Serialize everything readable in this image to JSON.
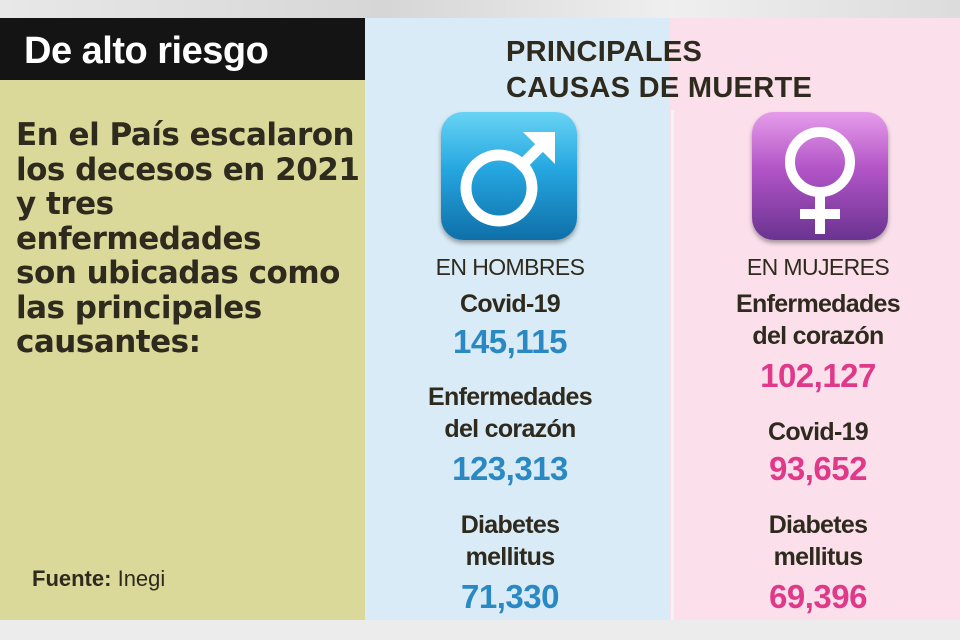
{
  "title": "De alto riesgo",
  "intro_lines": [
    "En el País escalaron",
    "los decesos en 2021",
    "y tres enfermedades",
    "son ubicadas como",
    "las principales",
    "causantes:"
  ],
  "source": {
    "label": "Fuente:",
    "value": "Inegi"
  },
  "heading_lines": [
    "PRINCIPALES",
    "CAUSAS DE MUERTE"
  ],
  "colors": {
    "men": "#2a88c3",
    "women": "#e0398a",
    "left_bg": "#dad99a",
    "men_bg": "#d9ebf6",
    "women_bg": "#fbe0ec"
  },
  "men": {
    "icon": "male-symbol-icon",
    "label": "EN HOMBRES",
    "causes": [
      {
        "name_lines": [
          "Covid-19"
        ],
        "value": "145,115"
      },
      {
        "name_lines": [
          "Enfermedades",
          "del corazón"
        ],
        "value": "123,313"
      },
      {
        "name_lines": [
          "Diabetes",
          "mellitus"
        ],
        "value": "71,330"
      }
    ]
  },
  "women": {
    "icon": "female-symbol-icon",
    "label": "EN MUJERES",
    "causes": [
      {
        "name_lines": [
          "Enfermedades",
          "del corazón"
        ],
        "value": "102,127"
      },
      {
        "name_lines": [
          "Covid-19"
        ],
        "value": "93,652"
      },
      {
        "name_lines": [
          "Diabetes",
          "mellitus"
        ],
        "value": "69,396"
      }
    ]
  }
}
